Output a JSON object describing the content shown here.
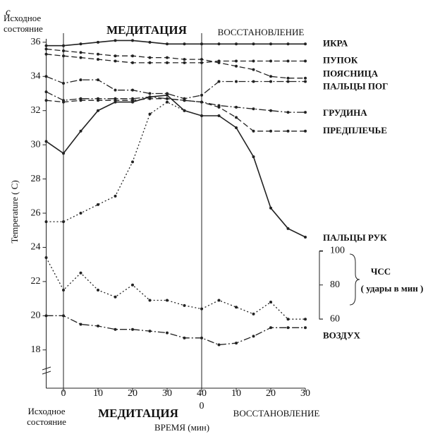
{
  "chart_data": {
    "type": "line",
    "panel_letter": "c",
    "top_labels": [
      "Исходное\nсостояние",
      "МЕДИТАЦИЯ",
      "ВОССТАНОВЛЕНИЕ"
    ],
    "bottom_labels": [
      "Исходное\nсостояние",
      "МЕДИТАЦИЯ",
      "ВОССТАНОВЛЕНИЕ"
    ],
    "x_label": "ВРЕМЯ (мин)",
    "y_label": "Temperature ( C)",
    "y2_label": "ЧСС",
    "y2_unit": "( удары в мин )",
    "phase_lines": [
      0,
      40
    ],
    "x": [
      -5,
      0,
      5,
      10,
      15,
      20,
      25,
      30,
      35,
      40,
      45,
      50,
      55,
      60,
      65,
      70
    ],
    "xlim": [
      -5,
      70
    ],
    "xticks": [
      0,
      10,
      20,
      30,
      40,
      {
        "value": 40,
        "label": "0"
      },
      {
        "value": 50,
        "label": "10"
      },
      {
        "value": 60,
        "label": "20"
      },
      {
        "value": 70,
        "label": "30"
      }
    ],
    "ylim": [
      17,
      36.2
    ],
    "yticks": [
      18,
      20,
      22,
      24,
      26,
      28,
      30,
      32,
      34,
      36
    ],
    "y2lim": [
      32,
      224
    ],
    "y2ticks": [
      60,
      80,
      100
    ],
    "series": [
      {
        "name": "ИКРА",
        "color": "#222",
        "style": "solid",
        "values": [
          35.8,
          35.8,
          35.9,
          36.0,
          36.1,
          36.1,
          36.0,
          35.9,
          35.9,
          35.9,
          35.9,
          35.9,
          35.9,
          35.9,
          35.9,
          35.9
        ]
      },
      {
        "name": "ПУПОК",
        "color": "#222",
        "style": "dashed",
        "values": [
          35.3,
          35.2,
          35.1,
          35.0,
          34.9,
          34.8,
          34.8,
          34.8,
          34.8,
          34.8,
          34.9,
          34.9,
          34.9,
          34.9,
          34.9,
          34.9
        ]
      },
      {
        "name": "ПОЯСНИЦА",
        "color": "#222",
        "style": "dashed",
        "values": [
          35.6,
          35.5,
          35.4,
          35.3,
          35.2,
          35.2,
          35.1,
          35.1,
          35.0,
          35.0,
          34.8,
          34.6,
          34.4,
          34.0,
          33.9,
          33.9
        ]
      },
      {
        "name": "ПАЛЬЦЫ ПОГ",
        "color": "#222",
        "style": "dashdot",
        "values": [
          34.0,
          33.6,
          33.8,
          33.8,
          33.2,
          33.2,
          33.0,
          33.0,
          32.7,
          32.9,
          33.7,
          33.7,
          33.7,
          33.7,
          33.7,
          33.7
        ]
      },
      {
        "name": "ГРУДИНА",
        "color": "#222",
        "style": "dashdot",
        "values": [
          33.1,
          32.6,
          32.7,
          32.7,
          32.7,
          32.7,
          32.8,
          32.7,
          32.6,
          32.5,
          32.3,
          32.2,
          32.1,
          32.0,
          31.9,
          31.9
        ]
      },
      {
        "name": "ПРЕДПЛЕЧЬЕ",
        "color": "#222",
        "style": "dashed",
        "values": [
          32.6,
          32.5,
          32.6,
          32.6,
          32.6,
          32.6,
          32.7,
          32.7,
          32.6,
          32.5,
          32.2,
          31.6,
          30.8,
          30.8,
          30.8,
          30.8
        ]
      },
      {
        "name": "ПАЛЬЦЫ РУК",
        "color": "#222",
        "style": "solid",
        "values": [
          30.2,
          29.5,
          30.8,
          32.0,
          32.5,
          32.5,
          32.8,
          32.9,
          32.0,
          31.7,
          31.7,
          31.0,
          29.3,
          26.3,
          25.1,
          24.6
        ]
      },
      {
        "color": "#222",
        "style": "dotted",
        "values": [
          25.5,
          25.5,
          26.0,
          26.5,
          27.0,
          29.0,
          31.8,
          32.5,
          32.0,
          null,
          null,
          null,
          null,
          null,
          null,
          null
        ]
      },
      {
        "color": "#222",
        "style": "dotted",
        "axis": "y2",
        "values": [
          96,
          77,
          87,
          77,
          73,
          80,
          71,
          71,
          68,
          66,
          71,
          67,
          63,
          70,
          60,
          60
        ]
      },
      {
        "name": "ВОЗДУХ",
        "color": "#222",
        "style": "dashdot",
        "values": [
          20.0,
          20.0,
          19.5,
          19.4,
          19.2,
          19.2,
          19.1,
          19.0,
          18.7,
          18.7,
          18.3,
          18.4,
          18.8,
          19.3,
          19.3,
          19.3
        ]
      }
    ]
  }
}
